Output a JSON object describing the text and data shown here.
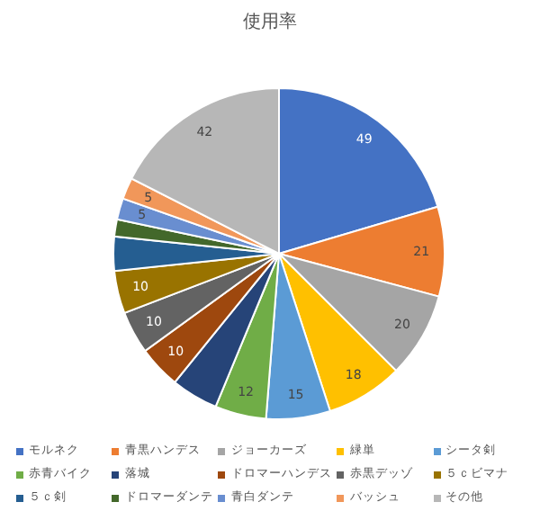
{
  "chart_data": {
    "type": "pie",
    "title": "使用率",
    "categories": [
      "モルネク",
      "青黒ハンデス",
      "ジョーカーズ",
      "緑単",
      "シータ剣",
      "赤青バイク",
      "落城",
      "ドロマーハンデス",
      "赤黒デッゾ",
      "５ｃビマナ",
      "５ｃ剣",
      "ドロマーダンテ",
      "青白ダンテ",
      "バッシュ",
      "その他"
    ],
    "values": [
      49,
      21,
      20,
      18,
      15,
      12,
      11,
      10,
      10,
      10,
      8,
      4,
      5,
      5,
      42
    ],
    "value_labels": [
      "49",
      "21",
      "20",
      "18",
      "15",
      "12",
      null,
      "10",
      "10",
      "10",
      null,
      null,
      "5",
      "5",
      "42"
    ],
    "colors": [
      "#4472c4",
      "#ed7d31",
      "#a5a5a5",
      "#ffc000",
      "#5b9bd5",
      "#70ad47",
      "#264478",
      "#9e480e",
      "#636363",
      "#997300",
      "#255e91",
      "#43682b",
      "#698ed0",
      "#f1975a",
      "#b7b7b7"
    ],
    "legend": "bottom"
  }
}
